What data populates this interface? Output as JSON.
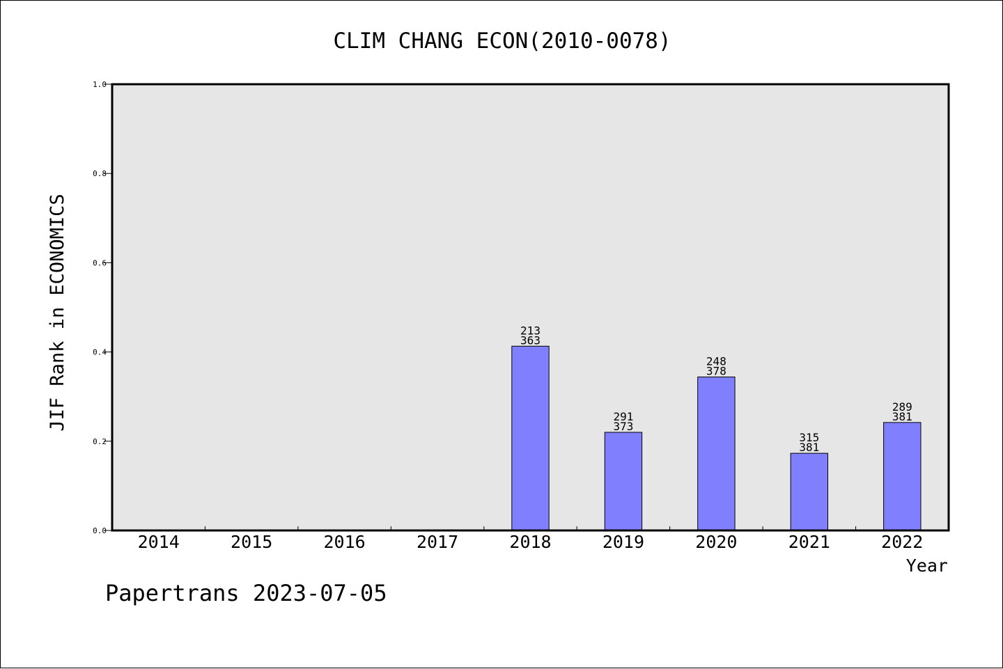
{
  "chart_data": {
    "type": "bar",
    "title": "CLIM CHANG ECON(2010-0078)",
    "xlabel": "Year",
    "ylabel": "JIF Rank in ECONOMICS",
    "ylim": [
      0,
      1.0
    ],
    "yticks": [
      "0.0",
      "0.2",
      "0.4",
      "0.6",
      "0.8",
      "1.0"
    ],
    "categories": [
      "2014",
      "2015",
      "2016",
      "2017",
      "2018",
      "2019",
      "2020",
      "2021",
      "2022"
    ],
    "values": [
      null,
      null,
      null,
      null,
      0.413,
      0.22,
      0.344,
      0.173,
      0.242
    ],
    "rank_labels": [
      null,
      null,
      null,
      null,
      {
        "rank": "213",
        "total": "363"
      },
      {
        "rank": "291",
        "total": "373"
      },
      {
        "rank": "248",
        "total": "378"
      },
      {
        "rank": "315",
        "total": "381"
      },
      {
        "rank": "289",
        "total": "381"
      }
    ],
    "grid": false,
    "colors": {
      "plot_background": "#e6e6e6",
      "bar_fill": "#8080ff",
      "bar_stroke": "#000000"
    }
  },
  "footer": {
    "text": "Papertrans 2023-07-05"
  }
}
